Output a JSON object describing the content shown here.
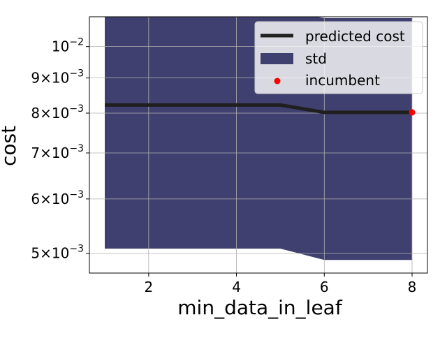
{
  "chart_data": {
    "type": "line",
    "xlabel": "min_data_in_leaf",
    "ylabel": "cost",
    "xlim": [
      0.65,
      8.35
    ],
    "ylim": [
      0.00468,
      0.01105
    ],
    "yscale": "log",
    "grid": true,
    "x_ticks": [
      2,
      4,
      6,
      8
    ],
    "x_tick_labels": [
      "2",
      "4",
      "6",
      "8"
    ],
    "y_ticks": [
      0.005,
      0.006,
      0.007,
      0.008,
      0.009,
      0.01
    ],
    "y_tick_labels": [
      {
        "mant": "5×10",
        "exp": "−3"
      },
      {
        "mant": "6×10",
        "exp": "−3"
      },
      {
        "mant": "7×10",
        "exp": "−3"
      },
      {
        "mant": "8×10",
        "exp": "−3"
      },
      {
        "mant": "9×10",
        "exp": "−3"
      },
      {
        "mant": "10",
        "exp": "−2"
      }
    ],
    "series": [
      {
        "name": "predicted cost",
        "kind": "line",
        "color": "#1f1f1f",
        "x": [
          1,
          2,
          3,
          4,
          5,
          6,
          7,
          8
        ],
        "y": [
          0.00822,
          0.00822,
          0.00822,
          0.00822,
          0.00822,
          0.00802,
          0.00802,
          0.00802
        ]
      },
      {
        "name": "std",
        "kind": "band",
        "color": "#404070",
        "x": [
          1,
          2,
          3,
          4,
          5,
          6,
          7,
          8
        ],
        "lower": [
          0.00508,
          0.00508,
          0.00508,
          0.00508,
          0.00508,
          0.00489,
          0.00489,
          0.00489
        ],
        "upper": [
          0.0113,
          0.0113,
          0.0113,
          0.0113,
          0.0113,
          0.011,
          0.011,
          0.011
        ]
      },
      {
        "name": "incumbent",
        "kind": "scatter",
        "color": "#ff0000",
        "x": [
          8
        ],
        "y": [
          0.00802
        ]
      }
    ],
    "legend": {
      "position": "top-right",
      "entries": [
        "predicted cost",
        "std",
        "incumbent"
      ]
    }
  }
}
